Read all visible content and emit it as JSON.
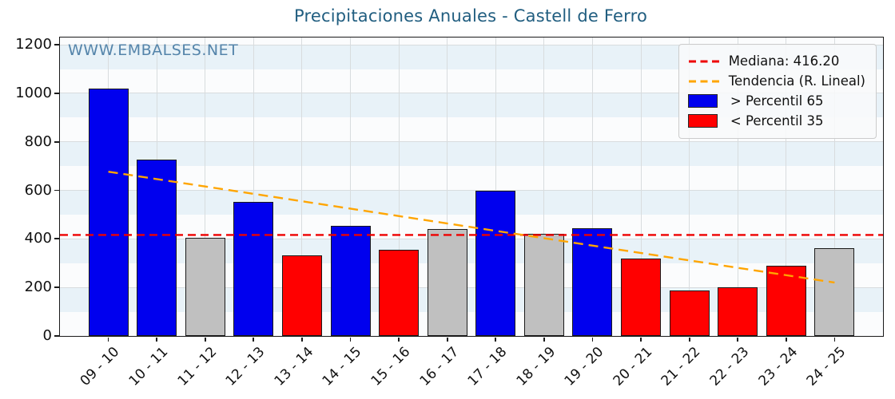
{
  "title": "Precipitaciones Anuales - Castell de Ferro",
  "watermark": "WWW.EMBALSES.NET",
  "legend": {
    "items": [
      {
        "label": "Mediana: 416.20",
        "sample": "dashed-line",
        "color_key": "median_line"
      },
      {
        "label": "Tendencia (R. Lineal)",
        "sample": "dashed-line",
        "color_key": "trend_line"
      },
      {
        "label": " > Percentil 65",
        "sample": "patch",
        "color_key": "bar_above_p65"
      },
      {
        "label": " < Percentil 35",
        "sample": "patch",
        "color_key": "bar_below_p35"
      }
    ]
  },
  "colors": {
    "title": "#215E80",
    "watermark": "#4D7FA6",
    "bar_above_p65": "#0000EE",
    "bar_below_p35": "#FF0000",
    "bar_mid": "#C0C0C0",
    "bar_edge": "#1A1A1A",
    "median_line": "#EE0000",
    "trend_line": "#FFA500",
    "band_light": "#E8F2F8",
    "band_white": "#FBFCFD",
    "grid_line": "#D8DCDE",
    "axis": "#1A1A1A",
    "legend_border": "#CCCCCC"
  },
  "chart_data": {
    "type": "bar",
    "title": "Precipitaciones Anuales - Castell de Ferro",
    "categories": [
      "09 - 10",
      "10 - 11",
      "11 - 12",
      "12 - 13",
      "13 - 14",
      "14 - 15",
      "15 - 16",
      "16 - 17",
      "17 - 18",
      "18 - 19",
      "19 - 20",
      "20 - 21",
      "21 - 22",
      "22 - 23",
      "23 - 24",
      "24 - 25"
    ],
    "values": [
      1020,
      728,
      406,
      552,
      332,
      455,
      355,
      440,
      598,
      422,
      445,
      320,
      189,
      200,
      288,
      361
    ],
    "bar_classes": [
      "above_p65",
      "above_p65",
      "mid",
      "above_p65",
      "below_p35",
      "above_p65",
      "below_p35",
      "mid",
      "above_p65",
      "mid",
      "above_p65",
      "below_p35",
      "below_p35",
      "below_p35",
      "below_p35",
      "mid"
    ],
    "median": 416.2,
    "trend_linear": {
      "start": 677,
      "end": 220
    },
    "xlabel": "",
    "ylabel": "",
    "ylim": [
      0,
      1230
    ],
    "yticks": [
      0,
      200,
      400,
      600,
      800,
      1000,
      1200
    ],
    "grid": true,
    "legend_position": "upper right"
  }
}
